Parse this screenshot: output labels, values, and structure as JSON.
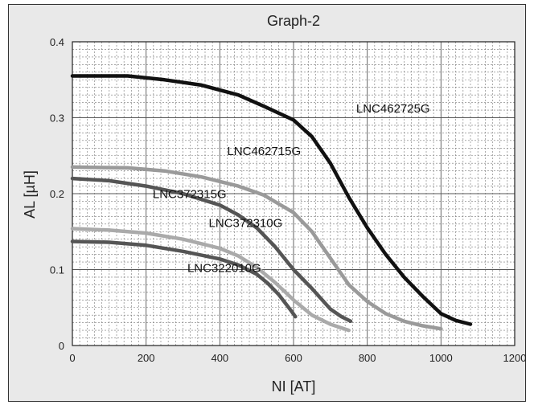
{
  "chart_data": {
    "type": "line",
    "title": "Graph-2",
    "xlabel": "NI [AT]",
    "ylabel": "AL [µH]",
    "xlim": [
      0,
      1200
    ],
    "ylim": [
      0,
      0.4
    ],
    "xticks": [
      "0",
      "200",
      "400",
      "600",
      "800",
      "1000",
      "1200"
    ],
    "yticks": [
      "0",
      "0.1",
      "0.2",
      "0.3",
      "0.4"
    ],
    "grid": true,
    "series": [
      {
        "name": "LNC462725G",
        "color": "#111111",
        "points": [
          [
            0,
            0.355
          ],
          [
            150,
            0.355
          ],
          [
            250,
            0.35
          ],
          [
            350,
            0.343
          ],
          [
            450,
            0.33
          ],
          [
            520,
            0.315
          ],
          [
            600,
            0.297
          ],
          [
            650,
            0.275
          ],
          [
            700,
            0.24
          ],
          [
            750,
            0.195
          ],
          [
            800,
            0.155
          ],
          [
            850,
            0.12
          ],
          [
            900,
            0.09
          ],
          [
            950,
            0.065
          ],
          [
            1000,
            0.042
          ],
          [
            1040,
            0.033
          ],
          [
            1080,
            0.028
          ]
        ]
      },
      {
        "name": "LNC462715G",
        "color": "#9a9a9a",
        "points": [
          [
            0,
            0.235
          ],
          [
            150,
            0.234
          ],
          [
            250,
            0.23
          ],
          [
            350,
            0.222
          ],
          [
            450,
            0.21
          ],
          [
            520,
            0.198
          ],
          [
            600,
            0.175
          ],
          [
            650,
            0.15
          ],
          [
            700,
            0.115
          ],
          [
            750,
            0.08
          ],
          [
            800,
            0.058
          ],
          [
            850,
            0.042
          ],
          [
            900,
            0.032
          ],
          [
            950,
            0.026
          ],
          [
            1000,
            0.022
          ]
        ]
      },
      {
        "name": "LNC372315G",
        "color": "#555555",
        "points": [
          [
            0,
            0.22
          ],
          [
            100,
            0.217
          ],
          [
            200,
            0.21
          ],
          [
            300,
            0.2
          ],
          [
            400,
            0.185
          ],
          [
            450,
            0.172
          ],
          [
            500,
            0.155
          ],
          [
            550,
            0.13
          ],
          [
            600,
            0.1
          ],
          [
            650,
            0.075
          ],
          [
            700,
            0.048
          ],
          [
            730,
            0.038
          ],
          [
            755,
            0.032
          ]
        ]
      },
      {
        "name": "LNC372310G",
        "color": "#aaaaaa",
        "points": [
          [
            0,
            0.154
          ],
          [
            100,
            0.152
          ],
          [
            200,
            0.148
          ],
          [
            300,
            0.14
          ],
          [
            400,
            0.128
          ],
          [
            450,
            0.118
          ],
          [
            500,
            0.103
          ],
          [
            550,
            0.083
          ],
          [
            600,
            0.06
          ],
          [
            650,
            0.04
          ],
          [
            700,
            0.028
          ],
          [
            750,
            0.02
          ]
        ]
      },
      {
        "name": "LNC322010G",
        "color": "#555555",
        "points": [
          [
            0,
            0.137
          ],
          [
            100,
            0.136
          ],
          [
            200,
            0.132
          ],
          [
            300,
            0.124
          ],
          [
            400,
            0.114
          ],
          [
            450,
            0.106
          ],
          [
            500,
            0.094
          ],
          [
            530,
            0.082
          ],
          [
            560,
            0.067
          ],
          [
            590,
            0.048
          ],
          [
            605,
            0.038
          ]
        ]
      }
    ]
  }
}
